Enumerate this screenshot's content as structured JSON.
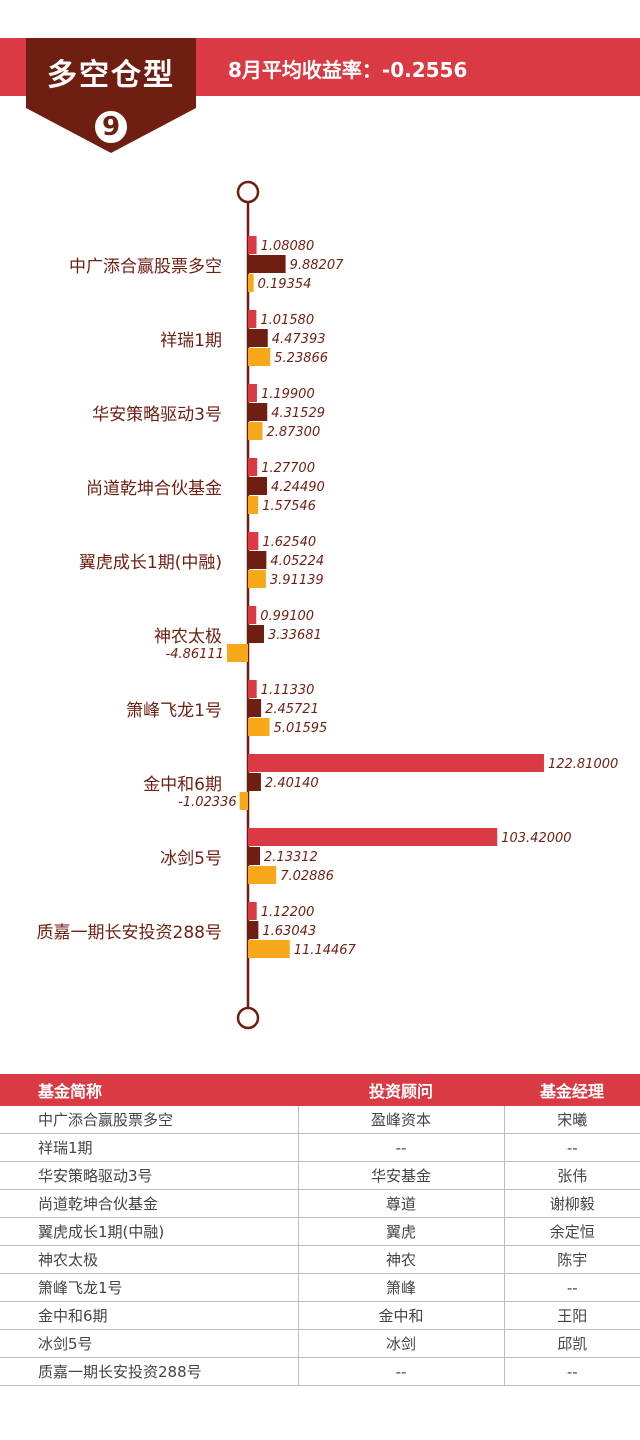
{
  "header": {
    "badge_title": "多空仓型",
    "badge_number": "9",
    "stat_text": "8月平均收益率：-0.2556"
  },
  "colors": {
    "series_1": "#d93a44",
    "series_2": "#6e1f12",
    "series_3": "#f7a81b",
    "axis": "#6e1f12"
  },
  "chart_data": {
    "type": "bar",
    "orientation": "horizontal",
    "categories": [
      "中广添合赢股票多空",
      "祥瑞1期",
      "华安策略驱动3号",
      "尚道乾坤合伙基金",
      "翼虎成长1期(中融)",
      "神农太极",
      "箫峰飞龙1号",
      "金中和6期",
      "冰剑5号",
      "质嘉一期长安投资288号"
    ],
    "series": [
      {
        "values": [
          1.0808,
          1.0158,
          1.199,
          1.277,
          1.6254,
          0.991,
          1.1133,
          122.81,
          103.42,
          1.122
        ]
      },
      {
        "values": [
          9.88207,
          4.47393,
          4.31529,
          4.2449,
          4.05224,
          3.33681,
          2.45721,
          2.4014,
          2.13312,
          1.63043
        ]
      },
      {
        "values": [
          0.19354,
          5.23866,
          2.873,
          1.57546,
          3.91139,
          -4.86111,
          5.01595,
          -1.02336,
          7.02886,
          11.14467
        ]
      }
    ],
    "value_labels": [
      [
        "1.08080",
        "1.01580",
        "1.19900",
        "1.27700",
        "1.62540",
        "0.99100",
        "1.11330",
        "122.81000",
        "103.42000",
        "1.12200"
      ],
      [
        "9.88207",
        "4.47393",
        "4.31529",
        "4.24490",
        "4.05224",
        "3.33681",
        "2.45721",
        "2.40140",
        "2.13312",
        "1.63043"
      ],
      [
        "0.19354",
        "5.23866",
        "2.87300",
        "1.57546",
        "3.91139",
        "-4.86111",
        "5.01595",
        "-1.02336",
        "7.02886",
        "11.14467"
      ]
    ],
    "title": "",
    "xlabel": "",
    "ylabel": "",
    "legend": "none",
    "grid": false
  },
  "table": {
    "headers": [
      "基金简称",
      "投资顾问",
      "基金经理"
    ],
    "rows": [
      [
        "中广添合赢股票多空",
        "盈峰资本",
        "宋曦"
      ],
      [
        "祥瑞1期",
        "--",
        "--"
      ],
      [
        "华安策略驱动3号",
        "华安基金",
        "张伟"
      ],
      [
        "尚道乾坤合伙基金",
        "尊道",
        "谢柳毅"
      ],
      [
        "翼虎成长1期(中融)",
        "翼虎",
        "余定恒"
      ],
      [
        "神农太极",
        "神农",
        "陈宇"
      ],
      [
        "箫峰飞龙1号",
        "箫峰",
        "--"
      ],
      [
        "金中和6期",
        "金中和",
        "王阳"
      ],
      [
        "冰剑5号",
        "冰剑",
        "邱凯"
      ],
      [
        "质嘉一期长安投资288号",
        "--",
        "--"
      ]
    ]
  }
}
